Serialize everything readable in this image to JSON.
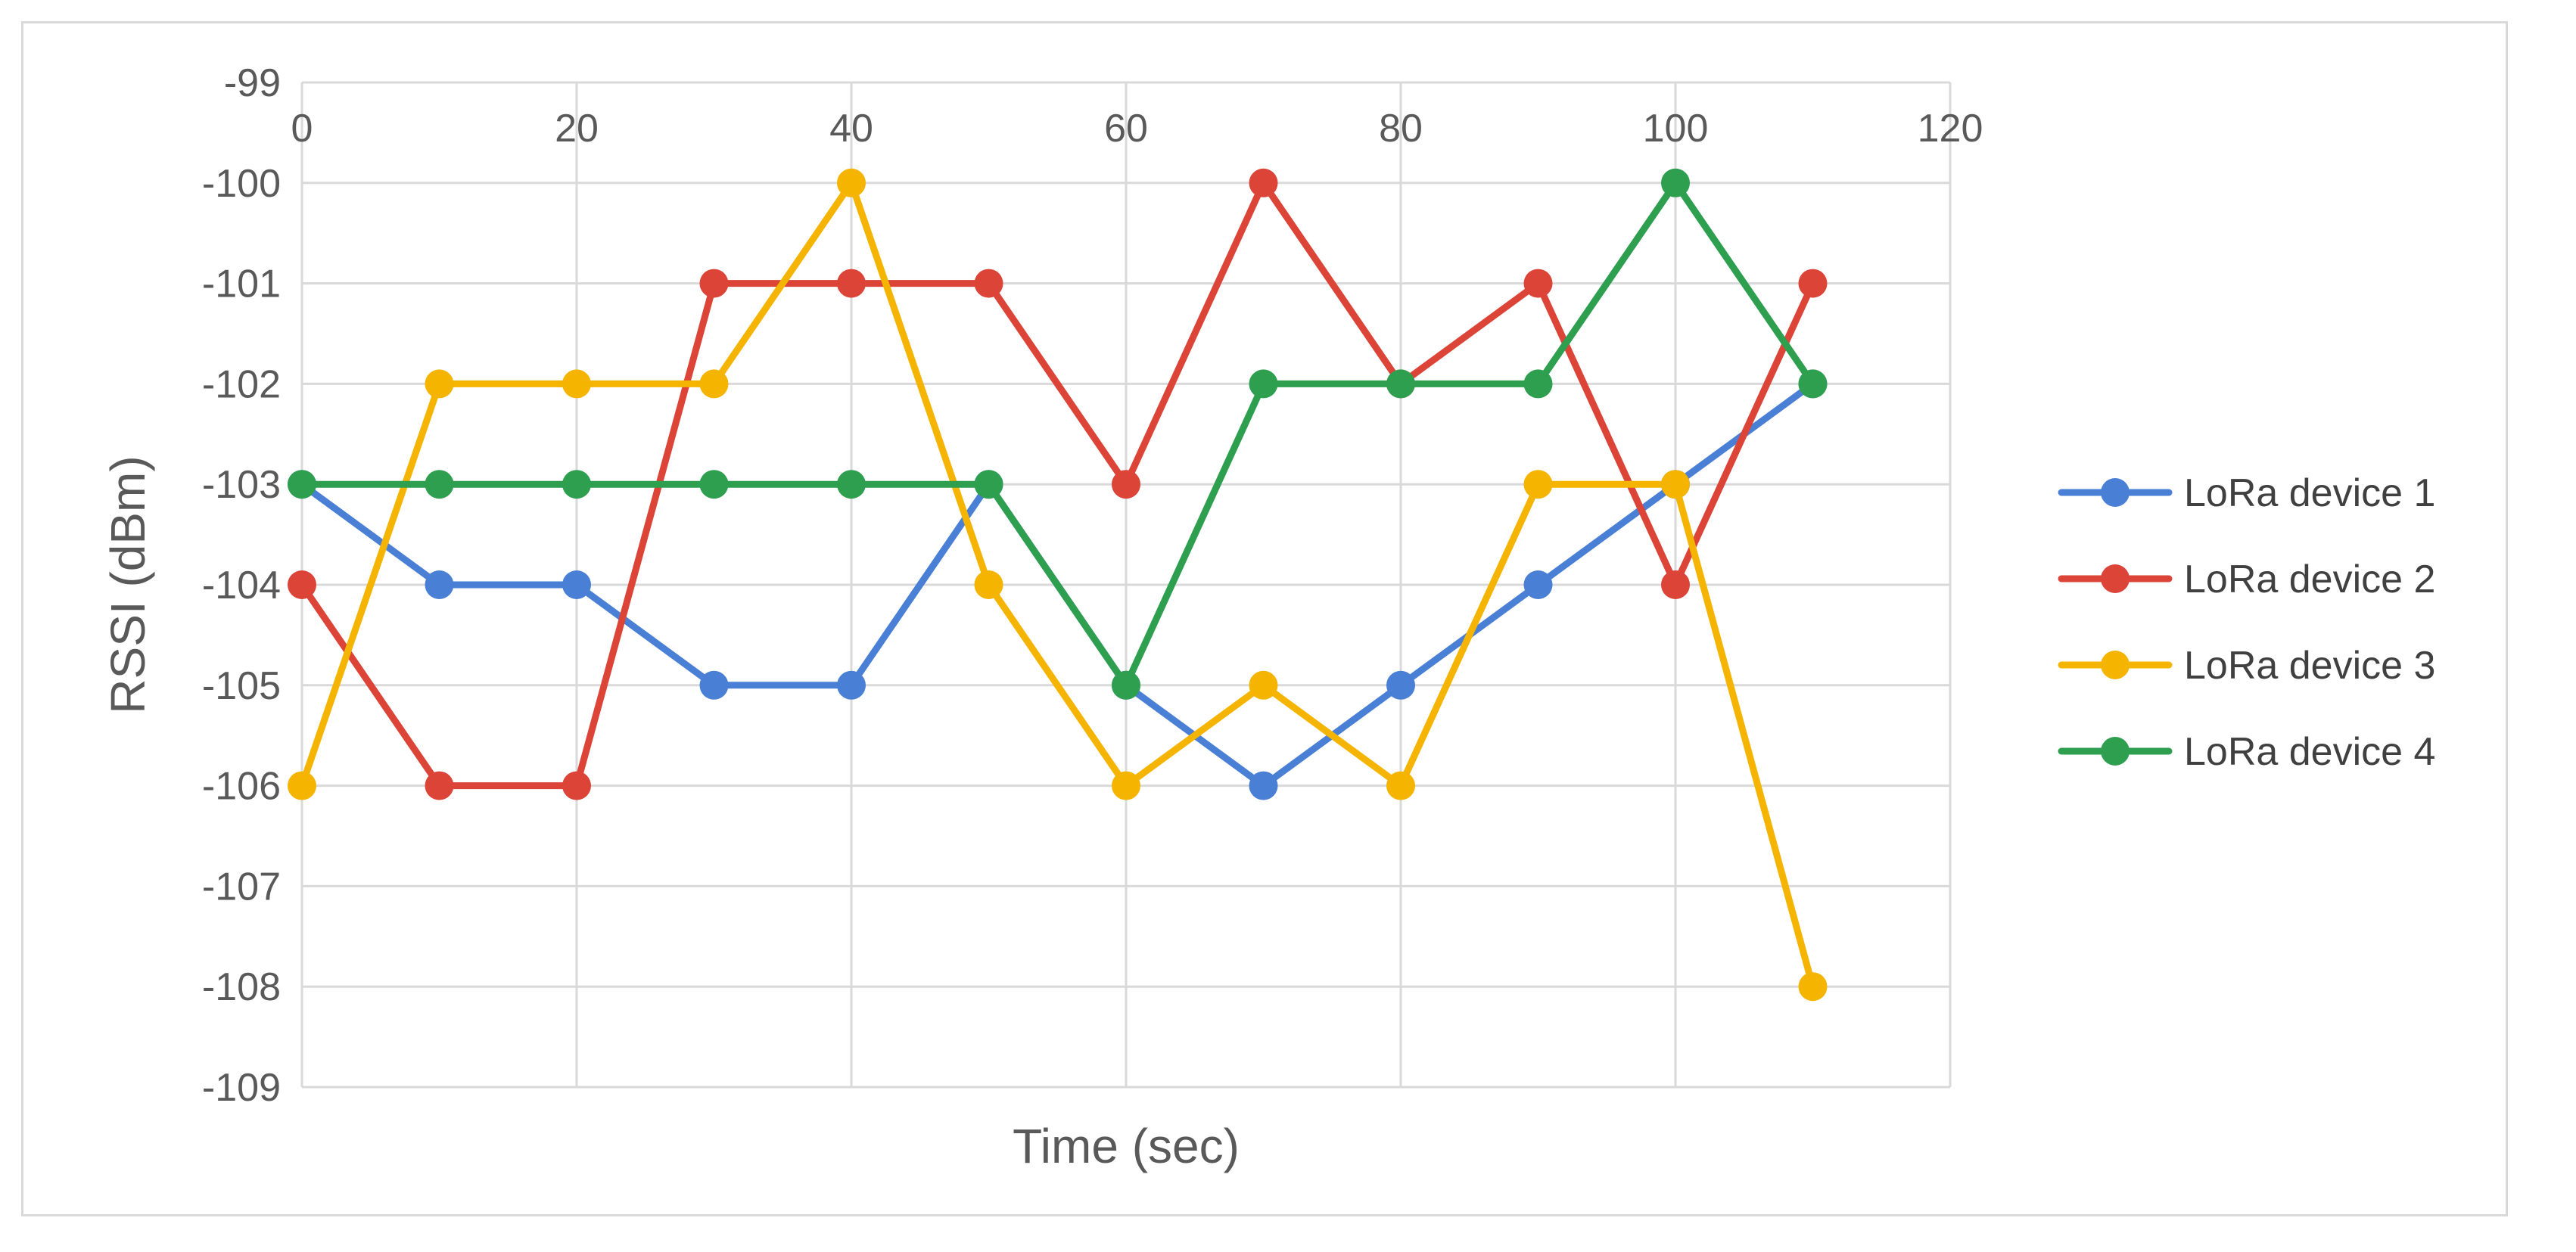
{
  "chart_data": {
    "type": "line",
    "title": "",
    "xlabel": "Time (sec)",
    "ylabel": "RSSI (dBm)",
    "xlim": [
      0,
      120
    ],
    "ylim": [
      -109,
      -99
    ],
    "x_ticks": [
      "0",
      "20",
      "40",
      "60",
      "80",
      "100",
      "120"
    ],
    "y_ticks": [
      "-99",
      "-100",
      "-101",
      "-102",
      "-103",
      "-104",
      "-105",
      "-106",
      "-107",
      "-108",
      "-109"
    ],
    "x_tick_values": [
      0,
      20,
      40,
      60,
      80,
      100,
      120
    ],
    "y_tick_values": [
      -99,
      -100,
      -101,
      -102,
      -103,
      -104,
      -105,
      -106,
      -107,
      -108,
      -109
    ],
    "x_axis_position": "top",
    "grid": true,
    "legend_position": "right",
    "x": [
      0,
      10,
      20,
      30,
      40,
      50,
      60,
      70,
      80,
      90,
      100,
      110
    ],
    "series": [
      {
        "name": "LoRa device 1",
        "color": "#4a7fd6",
        "values": [
          -103,
          -104,
          -104,
          -105,
          -105,
          -103,
          -105,
          -106,
          -105,
          -104,
          -103,
          -102
        ]
      },
      {
        "name": "LoRa device 2",
        "color": "#db4437",
        "values": [
          -104,
          -106,
          -106,
          -101,
          -101,
          -101,
          -103,
          -100,
          -102,
          -101,
          -104,
          -101
        ]
      },
      {
        "name": "LoRa device 3",
        "color": "#f4b400",
        "values": [
          -106,
          -102,
          -102,
          -102,
          -100,
          -104,
          -106,
          -105,
          -106,
          -103,
          -103,
          -108
        ]
      },
      {
        "name": "LoRa device 4",
        "color": "#2e9e4f",
        "values": [
          -103,
          -103,
          -103,
          -103,
          -103,
          -103,
          -105,
          -102,
          -102,
          -102,
          -100,
          -102
        ]
      }
    ]
  }
}
